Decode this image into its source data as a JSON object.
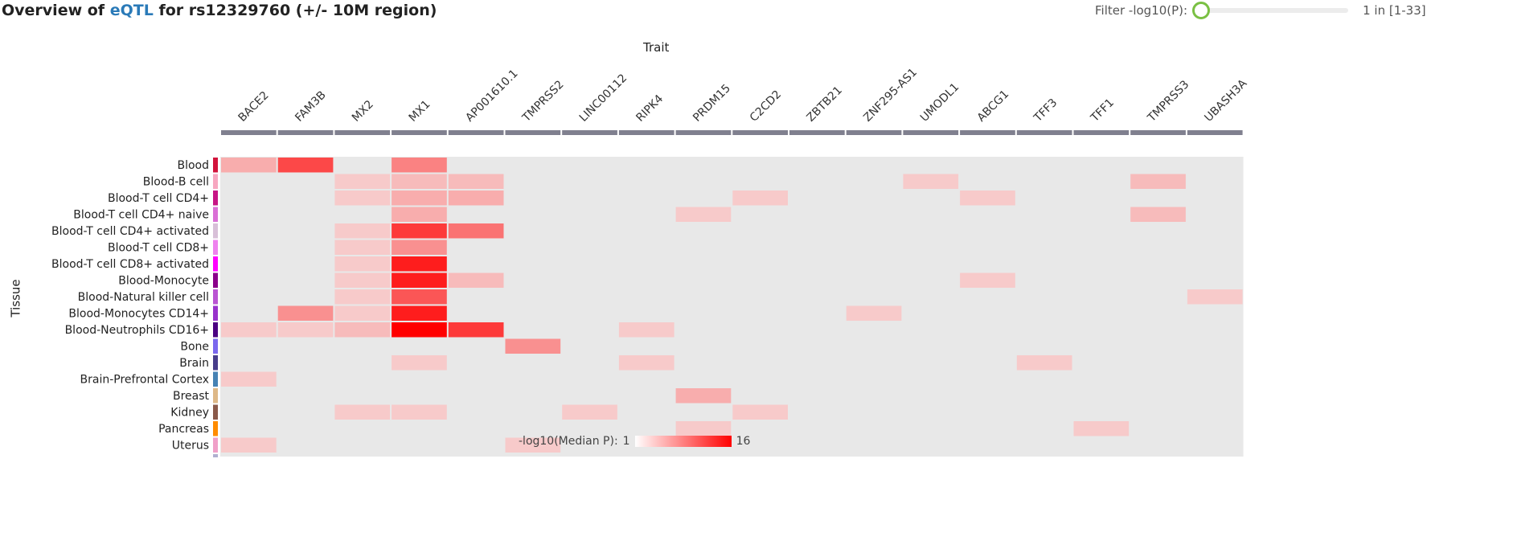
{
  "header": {
    "title_prefix": "Overview of",
    "title_link": "eQTL",
    "title_suffix": "for rs12329760 (+/- 10M region)",
    "filter_label": "Filter -log10(P):",
    "filter_value": "1 in [1-33]",
    "filter_fraction": 0.0
  },
  "colors": {
    "accent": "#2a7ab8",
    "empty_cell": "#e8e8e8",
    "high": "#ff0000",
    "low": "#f6e0e0",
    "header_bar": "#80808f",
    "slider_knob": "#7ac043"
  },
  "chart_data": {
    "type": "heatmap",
    "xlabel": "Trait",
    "ylabel": "Tissue",
    "x": [
      "BACE2",
      "FAM3B",
      "MX2",
      "MX1",
      "AP001610.1",
      "TMPRSS2",
      "LINC00112",
      "RIPK4",
      "PRDM15",
      "C2CD2",
      "ZBTB21",
      "ZNF295-AS1",
      "UMODL1",
      "ABCG1",
      "TFF3",
      "TFF1",
      "TMPRSS3",
      "UBASH3A"
    ],
    "y": [
      "Blood",
      "Blood-B cell",
      "Blood-T cell CD4+",
      "Blood-T cell CD4+ naive",
      "Blood-T cell CD4+ activated",
      "Blood-T cell CD8+",
      "Blood-T cell CD8+ activated",
      "Blood-Monocyte",
      "Blood-Natural killer cell",
      "Blood-Monocytes CD14+",
      "Blood-Neutrophils CD16+",
      "Bone",
      "Brain",
      "Brain-Prefrontal Cortex",
      "Breast",
      "Kidney",
      "Pancreas",
      "Uterus"
    ],
    "tissue_colors": [
      "#d2143c",
      "#f7a7c0",
      "#c71585",
      "#da70d6",
      "#d8bfd8",
      "#ee82ee",
      "#ff00ff",
      "#8b008b",
      "#ba55d3",
      "#9932cc",
      "#4b0082",
      "#7b68ee",
      "#483d8b",
      "#4682b4",
      "#deb887",
      "#8b5a4a",
      "#ff8c00",
      "#f0a0c8"
    ],
    "cells": [
      [
        0,
        0,
        4
      ],
      [
        0,
        1,
        11
      ],
      [
        0,
        3,
        7
      ],
      [
        1,
        2,
        2
      ],
      [
        1,
        3,
        3
      ],
      [
        1,
        4,
        3
      ],
      [
        1,
        12,
        2
      ],
      [
        1,
        16,
        3
      ],
      [
        2,
        2,
        2
      ],
      [
        2,
        3,
        4
      ],
      [
        2,
        4,
        4
      ],
      [
        2,
        9,
        2
      ],
      [
        2,
        13,
        2
      ],
      [
        3,
        3,
        4
      ],
      [
        3,
        8,
        2
      ],
      [
        3,
        16,
        3
      ],
      [
        4,
        2,
        2
      ],
      [
        4,
        3,
        12
      ],
      [
        4,
        4,
        8
      ],
      [
        5,
        2,
        2
      ],
      [
        5,
        3,
        6
      ],
      [
        6,
        2,
        2
      ],
      [
        6,
        3,
        14
      ],
      [
        7,
        2,
        2
      ],
      [
        7,
        3,
        14
      ],
      [
        7,
        4,
        3
      ],
      [
        7,
        13,
        2
      ],
      [
        8,
        2,
        2
      ],
      [
        8,
        3,
        10
      ],
      [
        8,
        17,
        2
      ],
      [
        9,
        1,
        6
      ],
      [
        9,
        2,
        2
      ],
      [
        9,
        3,
        14
      ],
      [
        9,
        11,
        2
      ],
      [
        10,
        0,
        2
      ],
      [
        10,
        1,
        2
      ],
      [
        10,
        2,
        3
      ],
      [
        10,
        3,
        16
      ],
      [
        10,
        4,
        12
      ],
      [
        10,
        7,
        2
      ],
      [
        11,
        5,
        6
      ],
      [
        12,
        3,
        2
      ],
      [
        12,
        7,
        2
      ],
      [
        12,
        14,
        2
      ],
      [
        13,
        0,
        2
      ],
      [
        14,
        8,
        4
      ],
      [
        15,
        2,
        2
      ],
      [
        15,
        3,
        2
      ],
      [
        15,
        6,
        2
      ],
      [
        15,
        9,
        2
      ],
      [
        16,
        8,
        2
      ],
      [
        16,
        15,
        2
      ],
      [
        17,
        0,
        2
      ],
      [
        17,
        5,
        2
      ]
    ],
    "colorbar": {
      "label": "-log10(Median P):",
      "min": 1,
      "max": 16,
      "min_label": "1",
      "max_label": "16"
    }
  }
}
